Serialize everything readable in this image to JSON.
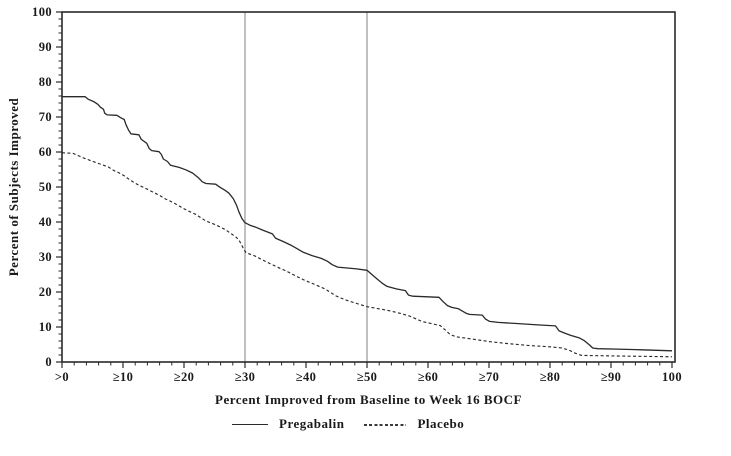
{
  "chart_data": {
    "type": "line",
    "title": "",
    "xlabel": "Percent Improved from Baseline to Week 16 BOCF",
    "ylabel": "Percent of Subjects Improved",
    "xlim": [
      0,
      100
    ],
    "ylim": [
      0,
      100
    ],
    "grid": false,
    "frame_box": true,
    "x_ticks": [
      {
        "value": 0,
        "label": ">0"
      },
      {
        "value": 10,
        "label": "≥10"
      },
      {
        "value": 20,
        "label": "≥20"
      },
      {
        "value": 30,
        "label": "≥30"
      },
      {
        "value": 40,
        "label": "≥40"
      },
      {
        "value": 50,
        "label": "≥50"
      },
      {
        "value": 60,
        "label": "≥60"
      },
      {
        "value": 70,
        "label": "≥70"
      },
      {
        "value": 80,
        "label": "≥80"
      },
      {
        "value": 90,
        "label": "≥90"
      },
      {
        "value": 100,
        "label": "100"
      }
    ],
    "y_ticks": [
      {
        "value": 0,
        "label": "0"
      },
      {
        "value": 10,
        "label": "10"
      },
      {
        "value": 20,
        "label": "20"
      },
      {
        "value": 30,
        "label": "30"
      },
      {
        "value": 40,
        "label": "40"
      },
      {
        "value": 50,
        "label": "50"
      },
      {
        "value": 60,
        "label": "60"
      },
      {
        "value": 70,
        "label": "70"
      },
      {
        "value": 80,
        "label": "80"
      },
      {
        "value": 90,
        "label": "90"
      },
      {
        "value": 100,
        "label": "100"
      }
    ],
    "minor_tick_step": 2,
    "reference_lines_x": [
      30,
      50
    ],
    "legend_position": "bottom",
    "legend": [
      {
        "name": "Pregabalin",
        "style": "solid"
      },
      {
        "name": "Placebo",
        "style": "dashed"
      }
    ],
    "colors": {
      "curve": "#2a2a2a",
      "reference_line": "#a6a6a6",
      "frame": "#2a2a2a",
      "text": "#1a1a1a",
      "background": "#ffffff"
    },
    "series": [
      {
        "name": "Pregabalin",
        "style": "solid",
        "points": [
          [
            0,
            75.8
          ],
          [
            3.8,
            75.8
          ],
          [
            4.3,
            75.1
          ],
          [
            5.2,
            74.4
          ],
          [
            5.9,
            73.6
          ],
          [
            6.3,
            72.8
          ],
          [
            6.8,
            72.2
          ],
          [
            7.0,
            71.1
          ],
          [
            7.4,
            70.6
          ],
          [
            9.0,
            70.5
          ],
          [
            9.6,
            69.8
          ],
          [
            10.2,
            69.3
          ],
          [
            10.5,
            67.8
          ],
          [
            10.9,
            66.3
          ],
          [
            11.3,
            65.2
          ],
          [
            12.6,
            64.9
          ],
          [
            13.0,
            63.6
          ],
          [
            13.9,
            62.5
          ],
          [
            14.3,
            61.0
          ],
          [
            14.7,
            60.4
          ],
          [
            15.9,
            60.1
          ],
          [
            16.3,
            59.3
          ],
          [
            16.6,
            58.0
          ],
          [
            17.3,
            57.3
          ],
          [
            17.8,
            56.2
          ],
          [
            19.2,
            55.6
          ],
          [
            20.3,
            54.9
          ],
          [
            21.4,
            54.0
          ],
          [
            22.4,
            52.6
          ],
          [
            23.0,
            51.5
          ],
          [
            23.6,
            51.0
          ],
          [
            25.2,
            50.8
          ],
          [
            25.9,
            49.9
          ],
          [
            26.7,
            49.1
          ],
          [
            27.4,
            48.2
          ],
          [
            28.1,
            46.6
          ],
          [
            28.6,
            44.8
          ],
          [
            29.0,
            42.9
          ],
          [
            29.5,
            41.0
          ],
          [
            30.0,
            39.8
          ],
          [
            30.8,
            39.1
          ],
          [
            31.8,
            38.5
          ],
          [
            33.0,
            37.6
          ],
          [
            34.5,
            36.6
          ],
          [
            35.0,
            35.4
          ],
          [
            35.5,
            35.0
          ],
          [
            36.3,
            34.4
          ],
          [
            37.5,
            33.4
          ],
          [
            38.5,
            32.4
          ],
          [
            39.5,
            31.4
          ],
          [
            41.0,
            30.4
          ],
          [
            42.5,
            29.6
          ],
          [
            43.5,
            28.8
          ],
          [
            44.3,
            27.8
          ],
          [
            45.2,
            27.1
          ],
          [
            48.3,
            26.6
          ],
          [
            50.0,
            26.2
          ],
          [
            50.8,
            25.0
          ],
          [
            51.6,
            23.8
          ],
          [
            52.5,
            22.5
          ],
          [
            53.3,
            21.6
          ],
          [
            54.8,
            20.9
          ],
          [
            56.3,
            20.4
          ],
          [
            56.8,
            19.1
          ],
          [
            57.5,
            18.8
          ],
          [
            61.8,
            18.5
          ],
          [
            62.5,
            17.2
          ],
          [
            63.2,
            16.1
          ],
          [
            63.9,
            15.6
          ],
          [
            65.0,
            15.2
          ],
          [
            66.3,
            13.9
          ],
          [
            66.8,
            13.6
          ],
          [
            68.9,
            13.4
          ],
          [
            69.4,
            12.3
          ],
          [
            70.1,
            11.6
          ],
          [
            71.5,
            11.3
          ],
          [
            74.5,
            11.0
          ],
          [
            78.0,
            10.6
          ],
          [
            80.9,
            10.3
          ],
          [
            81.5,
            8.9
          ],
          [
            82.3,
            8.3
          ],
          [
            83.4,
            7.6
          ],
          [
            84.8,
            6.9
          ],
          [
            85.6,
            6.1
          ],
          [
            86.4,
            5.0
          ],
          [
            87.0,
            4.0
          ],
          [
            87.8,
            3.8
          ],
          [
            91.0,
            3.7
          ],
          [
            95.0,
            3.5
          ],
          [
            100,
            3.2
          ]
        ]
      },
      {
        "name": "Placebo",
        "style": "dashed",
        "points": [
          [
            0,
            59.8
          ],
          [
            1.8,
            59.6
          ],
          [
            2.6,
            59.0
          ],
          [
            3.4,
            58.4
          ],
          [
            4.6,
            57.6
          ],
          [
            6.0,
            56.7
          ],
          [
            7.6,
            55.7
          ],
          [
            8.5,
            54.7
          ],
          [
            9.4,
            54.0
          ],
          [
            10.2,
            53.2
          ],
          [
            11.0,
            52.2
          ],
          [
            11.8,
            51.3
          ],
          [
            12.7,
            50.4
          ],
          [
            13.5,
            49.8
          ],
          [
            14.4,
            49.0
          ],
          [
            15.2,
            48.3
          ],
          [
            16.0,
            47.6
          ],
          [
            16.8,
            46.7
          ],
          [
            17.7,
            46.0
          ],
          [
            18.5,
            45.3
          ],
          [
            19.3,
            44.5
          ],
          [
            20.2,
            43.6
          ],
          [
            21.0,
            42.9
          ],
          [
            21.9,
            42.2
          ],
          [
            22.7,
            41.3
          ],
          [
            23.5,
            40.4
          ],
          [
            24.3,
            39.8
          ],
          [
            25.2,
            39.2
          ],
          [
            26.0,
            38.5
          ],
          [
            26.8,
            37.8
          ],
          [
            27.6,
            36.8
          ],
          [
            28.4,
            35.9
          ],
          [
            29.0,
            34.9
          ],
          [
            29.4,
            33.6
          ],
          [
            29.8,
            32.2
          ],
          [
            30.2,
            31.2
          ],
          [
            31.6,
            30.3
          ],
          [
            32.6,
            29.4
          ],
          [
            34.1,
            28.1
          ],
          [
            35.7,
            26.8
          ],
          [
            37.0,
            25.8
          ],
          [
            38.3,
            24.6
          ],
          [
            39.8,
            23.3
          ],
          [
            41.5,
            22.1
          ],
          [
            43.1,
            20.9
          ],
          [
            44.0,
            19.9
          ],
          [
            44.9,
            18.9
          ],
          [
            46.4,
            17.8
          ],
          [
            48.0,
            16.9
          ],
          [
            50.0,
            15.8
          ],
          [
            52.0,
            15.2
          ],
          [
            53.8,
            14.6
          ],
          [
            55.5,
            13.9
          ],
          [
            57.0,
            13.1
          ],
          [
            58.3,
            12.1
          ],
          [
            59.2,
            11.5
          ],
          [
            60.8,
            10.9
          ],
          [
            62.0,
            10.4
          ],
          [
            62.8,
            9.2
          ],
          [
            63.6,
            7.9
          ],
          [
            64.6,
            7.2
          ],
          [
            66.2,
            6.8
          ],
          [
            68.2,
            6.3
          ],
          [
            70.2,
            5.8
          ],
          [
            73.4,
            5.2
          ],
          [
            76.7,
            4.7
          ],
          [
            79.5,
            4.4
          ],
          [
            82.0,
            4.0
          ],
          [
            83.2,
            3.3
          ],
          [
            84.2,
            2.5
          ],
          [
            85.2,
            1.9
          ],
          [
            88.0,
            1.8
          ],
          [
            92.0,
            1.7
          ],
          [
            96.0,
            1.6
          ],
          [
            100,
            1.5
          ]
        ]
      }
    ]
  }
}
